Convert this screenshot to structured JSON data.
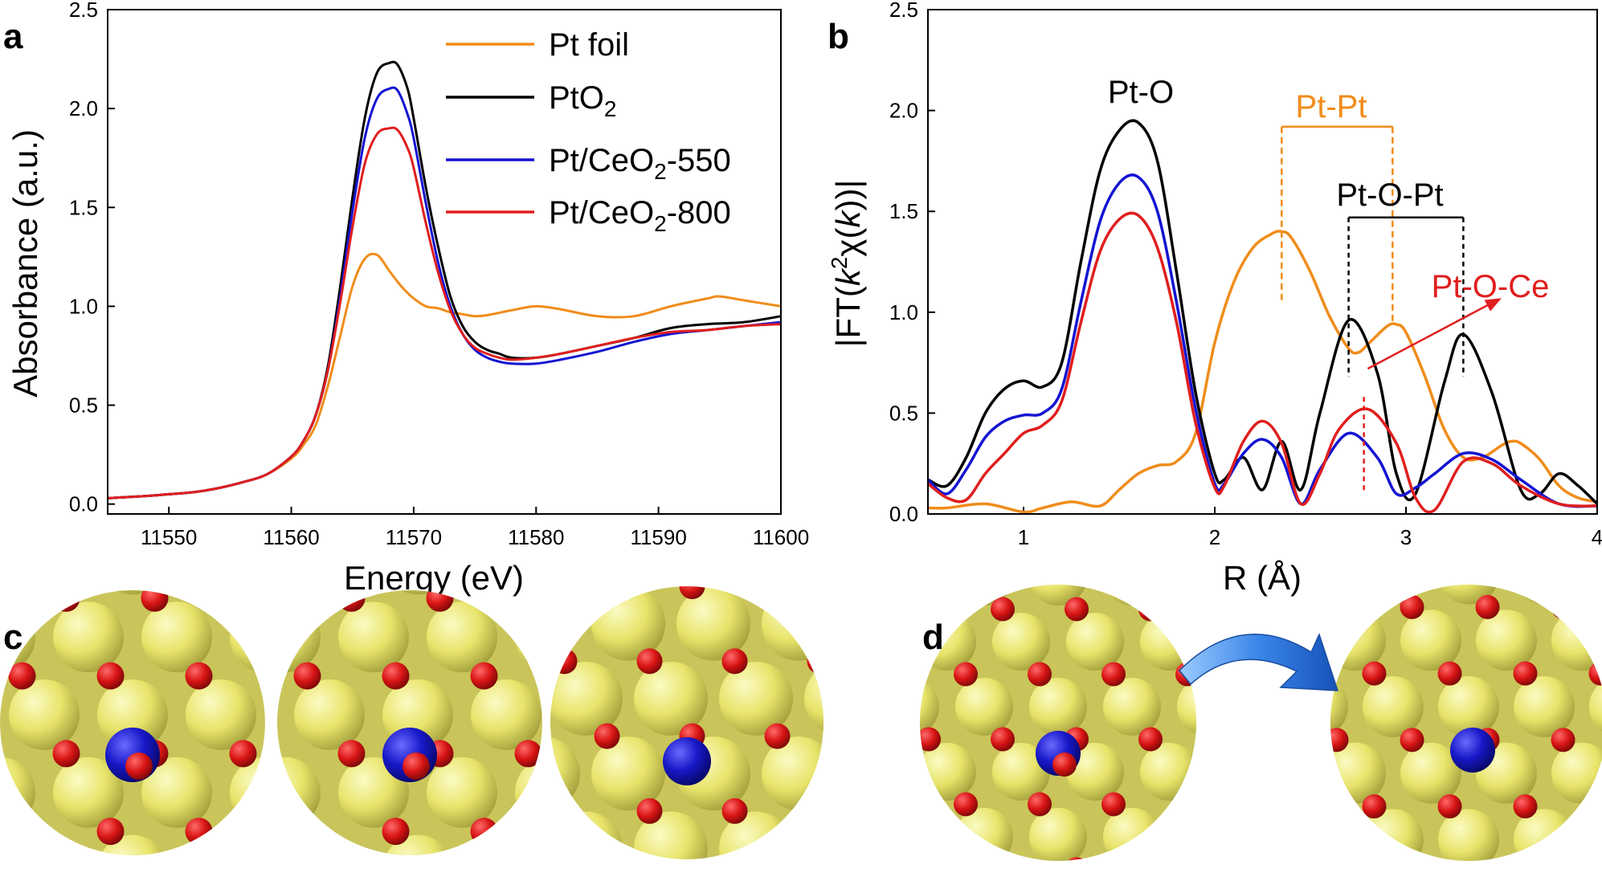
{
  "panels": [
    {
      "id": "a",
      "label": "a"
    },
    {
      "id": "b",
      "label": "b"
    },
    {
      "id": "c",
      "label": "c"
    },
    {
      "id": "d",
      "label": "d"
    }
  ],
  "colors": {
    "pt_foil": "#F08C1A",
    "pto2": "#000000",
    "pt_ceo2_550": "#1414D2",
    "pt_ceo2_800": "#E01E1E",
    "ceria_ce": "#E8E46A",
    "ceria_o": "#D81414",
    "pt_atom": "#1818C8",
    "transition_arrow": "#3A86E8"
  },
  "chart_data": [
    {
      "type": "line",
      "panel": "a",
      "title": "",
      "xlabel": "Energy (eV)",
      "ylabel": "Absorbance (a.u.)",
      "xlim": [
        11545,
        11600
      ],
      "ylim": [
        -0.05,
        2.5
      ],
      "xticks": [
        11550,
        11560,
        11570,
        11580,
        11590,
        11600
      ],
      "xtick_labels": [
        "11550",
        "11560",
        "11570",
        "11580",
        "11590",
        "11600"
      ],
      "yticks": [
        0.0,
        0.5,
        1.0,
        1.5,
        2.0,
        2.5
      ],
      "ytick_labels": [
        "0.0",
        "0.5",
        "1.0",
        "1.5",
        "2.0",
        "2.5"
      ],
      "legend": "top-right",
      "series": [
        {
          "name": "Pt foil",
          "legend_main": "Pt foil",
          "legend_sub": "",
          "legend_tail": "",
          "color": "#F08C1A",
          "x": [
            11545,
            11548,
            11550,
            11552,
            11554,
            11556,
            11558,
            11560,
            11561,
            11562,
            11563,
            11564,
            11565,
            11566,
            11567,
            11568,
            11569,
            11570,
            11571,
            11572,
            11573,
            11574,
            11575,
            11576,
            11578,
            11580,
            11582,
            11585,
            11588,
            11591,
            11594,
            11595,
            11597,
            11600
          ],
          "y": [
            0.03,
            0.04,
            0.05,
            0.06,
            0.08,
            0.11,
            0.15,
            0.23,
            0.3,
            0.4,
            0.6,
            0.85,
            1.1,
            1.24,
            1.26,
            1.18,
            1.1,
            1.04,
            1.0,
            0.99,
            0.97,
            0.96,
            0.95,
            0.955,
            0.98,
            1.0,
            0.985,
            0.95,
            0.95,
            1.0,
            1.04,
            1.05,
            1.03,
            1.0
          ]
        },
        {
          "name": "PtO2",
          "legend_main": "PtO",
          "legend_sub": "2",
          "legend_tail": "",
          "color": "#000000",
          "x": [
            11545,
            11548,
            11550,
            11552,
            11554,
            11556,
            11558,
            11560,
            11561,
            11562,
            11563,
            11564,
            11565,
            11566,
            11567,
            11568,
            11568.7,
            11569.5,
            11570,
            11571,
            11572,
            11573,
            11574,
            11575,
            11576,
            11577,
            11578,
            11580,
            11582,
            11585,
            11588,
            11591,
            11594,
            11597,
            11600
          ],
          "y": [
            0.03,
            0.04,
            0.05,
            0.06,
            0.08,
            0.11,
            0.15,
            0.24,
            0.32,
            0.45,
            0.7,
            1.1,
            1.55,
            1.95,
            2.18,
            2.23,
            2.22,
            2.1,
            1.95,
            1.6,
            1.3,
            1.05,
            0.9,
            0.82,
            0.78,
            0.76,
            0.74,
            0.74,
            0.76,
            0.8,
            0.84,
            0.89,
            0.91,
            0.92,
            0.95
          ]
        },
        {
          "name": "Pt/CeO2-550",
          "legend_main": "Pt/CeO",
          "legend_sub": "2",
          "legend_tail": "-550",
          "color": "#1414D2",
          "x": [
            11545,
            11548,
            11550,
            11552,
            11554,
            11556,
            11558,
            11560,
            11561,
            11562,
            11563,
            11564,
            11565,
            11566,
            11567,
            11568,
            11568.7,
            11569.5,
            11570,
            11571,
            11572,
            11573,
            11574,
            11575,
            11576,
            11577,
            11578,
            11580,
            11582,
            11585,
            11588,
            11591,
            11594,
            11597,
            11600
          ],
          "y": [
            0.03,
            0.04,
            0.05,
            0.06,
            0.08,
            0.11,
            0.15,
            0.24,
            0.32,
            0.45,
            0.68,
            1.05,
            1.48,
            1.85,
            2.05,
            2.1,
            2.09,
            1.97,
            1.85,
            1.52,
            1.22,
            1.0,
            0.86,
            0.78,
            0.74,
            0.72,
            0.71,
            0.71,
            0.73,
            0.77,
            0.82,
            0.86,
            0.88,
            0.9,
            0.92
          ]
        },
        {
          "name": "Pt/CeO2-800",
          "legend_main": "Pt/CeO",
          "legend_sub": "2",
          "legend_tail": "-800",
          "color": "#E01E1E",
          "x": [
            11545,
            11548,
            11550,
            11552,
            11554,
            11556,
            11558,
            11560,
            11561,
            11562,
            11563,
            11564,
            11565,
            11566,
            11567,
            11568,
            11568.7,
            11569.5,
            11570,
            11571,
            11572,
            11573,
            11574,
            11575,
            11576,
            11577,
            11578,
            11580,
            11582,
            11585,
            11588,
            11591,
            11594,
            11597,
            11600
          ],
          "y": [
            0.03,
            0.04,
            0.05,
            0.06,
            0.08,
            0.11,
            0.15,
            0.24,
            0.32,
            0.45,
            0.68,
            1.02,
            1.4,
            1.72,
            1.87,
            1.9,
            1.89,
            1.8,
            1.7,
            1.42,
            1.17,
            0.98,
            0.86,
            0.79,
            0.76,
            0.74,
            0.73,
            0.74,
            0.76,
            0.8,
            0.84,
            0.87,
            0.88,
            0.9,
            0.91
          ]
        }
      ]
    },
    {
      "type": "line",
      "panel": "b",
      "title": "",
      "xlabel": "R (Å)",
      "ylabel_parts": [
        "|FT(",
        "k",
        "2",
        "χ(",
        "k",
        "))|"
      ],
      "xlim": [
        0.5,
        4.0
      ],
      "ylim": [
        0,
        2.5
      ],
      "xticks": [
        1,
        2,
        3,
        4
      ],
      "xtick_labels": [
        "1",
        "2",
        "3",
        "4"
      ],
      "yticks": [
        0.0,
        0.5,
        1.0,
        1.5,
        2.0,
        2.5
      ],
      "ytick_labels": [
        "0.0",
        "0.5",
        "1.0",
        "1.5",
        "2.0",
        "2.5"
      ],
      "annotations": [
        {
          "text": "Pt-O",
          "color": "#000000"
        },
        {
          "text": "Pt-Pt",
          "color": "#F08C1A",
          "dashes_at_R": [
            2.35,
            2.93
          ],
          "bracket_y": 1.92
        },
        {
          "text": "Pt-O-Pt",
          "color": "#000000",
          "dashes_at_R": [
            2.7,
            3.3
          ],
          "bracket_y": 1.47
        },
        {
          "text": "Pt-O-Ce",
          "color": "#E01E1E",
          "dash_at_R": 2.78
        }
      ],
      "series": [
        {
          "name": "Pt foil",
          "color": "#F08C1A",
          "x": [
            0.5,
            0.6,
            0.8,
            1.0,
            1.1,
            1.25,
            1.4,
            1.5,
            1.6,
            1.7,
            1.8,
            1.9,
            2.0,
            2.1,
            2.2,
            2.3,
            2.35,
            2.4,
            2.5,
            2.6,
            2.7,
            2.75,
            2.8,
            2.9,
            2.95,
            3.0,
            3.1,
            3.2,
            3.3,
            3.4,
            3.5,
            3.55,
            3.6,
            3.7,
            3.8,
            3.9,
            4.0
          ],
          "y": [
            0.03,
            0.03,
            0.05,
            0.01,
            0.03,
            0.06,
            0.04,
            0.12,
            0.2,
            0.24,
            0.26,
            0.4,
            0.85,
            1.15,
            1.32,
            1.39,
            1.4,
            1.37,
            1.2,
            0.98,
            0.82,
            0.8,
            0.84,
            0.93,
            0.94,
            0.9,
            0.68,
            0.42,
            0.28,
            0.28,
            0.34,
            0.36,
            0.35,
            0.27,
            0.14,
            0.08,
            0.06
          ]
        },
        {
          "name": "PtO2",
          "color": "#000000",
          "x": [
            0.5,
            0.6,
            0.7,
            0.8,
            0.9,
            1.0,
            1.1,
            1.2,
            1.3,
            1.4,
            1.5,
            1.6,
            1.7,
            1.8,
            1.9,
            2.0,
            2.05,
            2.15,
            2.25,
            2.35,
            2.45,
            2.55,
            2.7,
            2.85,
            2.95,
            3.05,
            3.2,
            3.3,
            3.45,
            3.6,
            3.7,
            3.8,
            3.9,
            4.0
          ],
          "y": [
            0.17,
            0.14,
            0.28,
            0.5,
            0.62,
            0.66,
            0.63,
            0.75,
            1.25,
            1.7,
            1.9,
            1.94,
            1.75,
            1.2,
            0.6,
            0.2,
            0.17,
            0.28,
            0.12,
            0.36,
            0.12,
            0.5,
            0.96,
            0.7,
            0.2,
            0.1,
            0.65,
            0.89,
            0.6,
            0.12,
            0.1,
            0.2,
            0.14,
            0.05
          ]
        },
        {
          "name": "Pt/CeO2-550",
          "color": "#1414D2",
          "x": [
            0.5,
            0.6,
            0.7,
            0.8,
            0.9,
            1.0,
            1.1,
            1.2,
            1.3,
            1.4,
            1.5,
            1.6,
            1.7,
            1.8,
            1.9,
            2.0,
            2.05,
            2.15,
            2.25,
            2.35,
            2.45,
            2.55,
            2.7,
            2.85,
            2.95,
            3.05,
            3.15,
            3.3,
            3.45,
            3.6,
            3.8,
            4.0
          ],
          "y": [
            0.17,
            0.1,
            0.22,
            0.38,
            0.46,
            0.49,
            0.5,
            0.62,
            1.05,
            1.45,
            1.64,
            1.67,
            1.5,
            1.05,
            0.52,
            0.15,
            0.15,
            0.3,
            0.37,
            0.28,
            0.05,
            0.22,
            0.4,
            0.28,
            0.1,
            0.13,
            0.2,
            0.3,
            0.27,
            0.17,
            0.05,
            0.04
          ]
        },
        {
          "name": "Pt/CeO2-800",
          "color": "#E01E1E",
          "x": [
            0.5,
            0.6,
            0.7,
            0.8,
            0.9,
            1.0,
            1.1,
            1.2,
            1.3,
            1.4,
            1.5,
            1.6,
            1.7,
            1.8,
            1.9,
            2.0,
            2.05,
            2.15,
            2.25,
            2.35,
            2.45,
            2.55,
            2.65,
            2.8,
            2.95,
            3.05,
            3.15,
            3.3,
            3.45,
            3.6,
            3.8,
            4.0
          ],
          "y": [
            0.15,
            0.08,
            0.07,
            0.2,
            0.3,
            0.4,
            0.44,
            0.56,
            0.95,
            1.3,
            1.46,
            1.48,
            1.32,
            0.95,
            0.45,
            0.13,
            0.14,
            0.36,
            0.46,
            0.35,
            0.05,
            0.2,
            0.42,
            0.52,
            0.35,
            0.08,
            0.02,
            0.26,
            0.25,
            0.14,
            0.05,
            0.04
          ]
        }
      ]
    }
  ]
}
